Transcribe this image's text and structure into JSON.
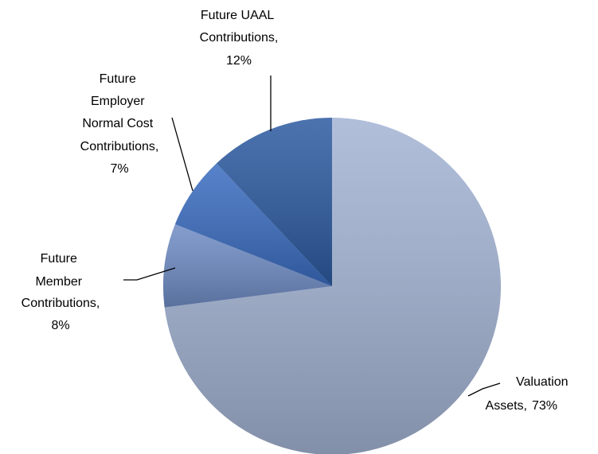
{
  "chart_data": {
    "type": "pie",
    "categories": [
      "Valuation Assets,",
      "Future Member Contributions,",
      "Future Employer Normal Cost Contributions,",
      "Future UAAL Contributions,"
    ],
    "values": [
      73,
      8,
      7,
      12
    ],
    "value_labels": [
      "73%",
      "8%",
      "7%",
      "12%"
    ],
    "colors": [
      "#a3b3d3",
      "#6f8cc4",
      "#3a6cc0",
      "#2c5aa0"
    ]
  }
}
